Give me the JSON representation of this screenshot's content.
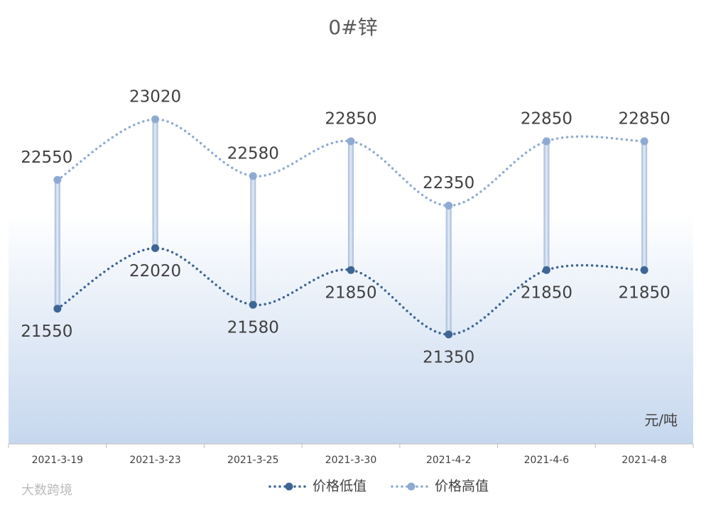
{
  "chart_data": {
    "type": "line",
    "title": "0#锌",
    "categories": [
      "2021-3-19",
      "2021-3-23",
      "2021-3-25",
      "2021-3-30",
      "2021-4-2",
      "2021-4-6",
      "2021-4-8"
    ],
    "series": [
      {
        "name": "价格低值",
        "color": "#3e6595",
        "values": [
          21550,
          22020,
          21580,
          21850,
          21350,
          21850,
          21850
        ]
      },
      {
        "name": "价格高值",
        "color": "#8eaad2",
        "values": [
          22550,
          23020,
          22580,
          22850,
          22350,
          22850,
          22850
        ]
      }
    ],
    "ylim": [
      20500,
      23500
    ],
    "unit": "元/吨",
    "watermark": "大数跨境"
  }
}
